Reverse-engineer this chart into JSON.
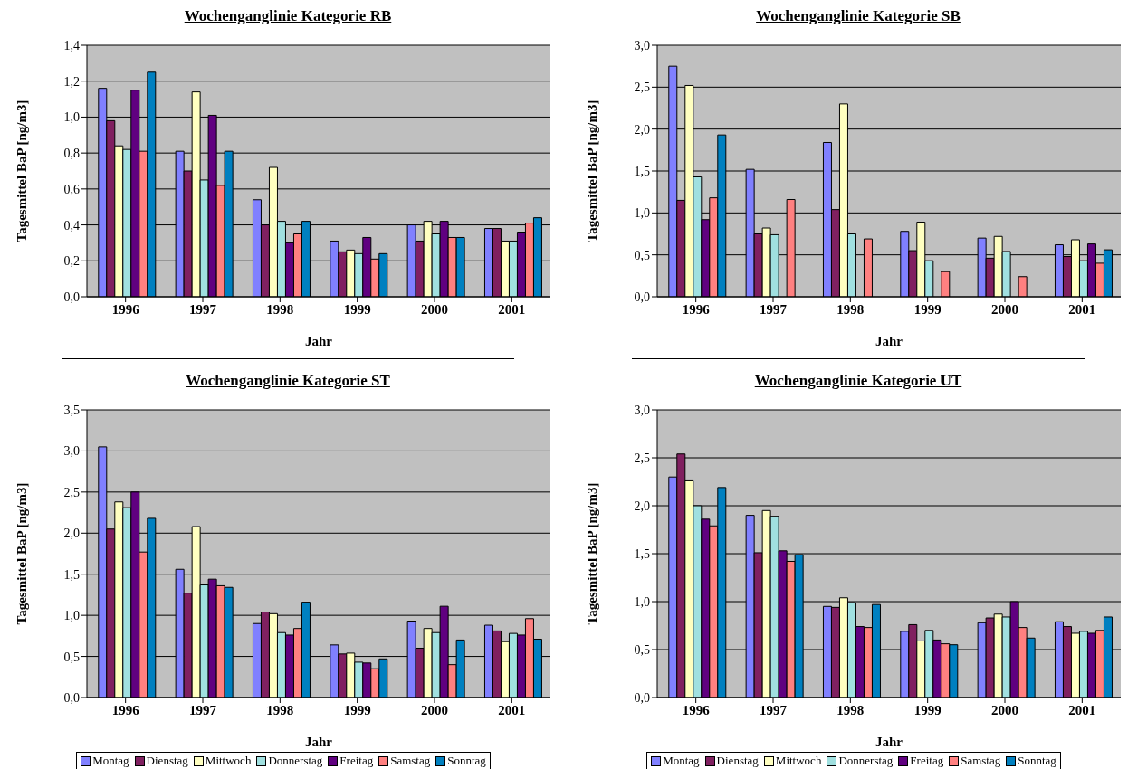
{
  "chart_data": [
    {
      "type": "bar",
      "title": "Wochenganglinie Kategorie RB",
      "xlabel": "Jahr",
      "ylabel": "Tagesmittel  BaP [ng/m3]",
      "categories": [
        "1996",
        "1997",
        "1998",
        "1999",
        "2000",
        "2001"
      ],
      "ylim": [
        0,
        1.4
      ],
      "yticks": [
        {
          "value": 0,
          "label": "0,0"
        },
        {
          "value": 0.2,
          "label": "0,2"
        },
        {
          "value": 0.4,
          "label": "0,4"
        },
        {
          "value": 0.6,
          "label": "0,6"
        },
        {
          "value": 0.8,
          "label": "0,8"
        },
        {
          "value": 1.0,
          "label": "1,0"
        },
        {
          "value": 1.2,
          "label": "1,2"
        },
        {
          "value": 1.4,
          "label": "1,4"
        }
      ],
      "grid": "y",
      "legend": false,
      "series": [
        {
          "color": "#8080ff",
          "values": [
            1.16,
            0.81,
            0.54,
            0.31,
            0.4,
            0.38
          ]
        },
        {
          "color": "#802060",
          "values": [
            0.98,
            0.7,
            0.4,
            0.25,
            0.31,
            0.38
          ]
        },
        {
          "color": "#ffffc0",
          "values": [
            0.84,
            1.14,
            0.72,
            0.26,
            0.42,
            0.31
          ]
        },
        {
          "color": "#a0e0e0",
          "values": [
            0.82,
            0.65,
            0.42,
            0.24,
            0.35,
            0.31
          ]
        },
        {
          "color": "#600080",
          "values": [
            1.15,
            1.01,
            0.3,
            0.33,
            0.42,
            0.36
          ]
        },
        {
          "color": "#ff8080",
          "values": [
            0.81,
            0.62,
            0.35,
            0.21,
            0.33,
            0.41
          ]
        },
        {
          "color": "#0080c0",
          "values": [
            1.25,
            0.81,
            0.42,
            0.24,
            0.33,
            0.44
          ]
        }
      ]
    },
    {
      "type": "bar",
      "title": "Wochenganglinie Kategorie SB",
      "xlabel": "Jahr",
      "ylabel": "Tagesmittel  BaP [ng/m3]",
      "categories": [
        "1996",
        "1997",
        "1998",
        "1999",
        "2000",
        "2001"
      ],
      "ylim": [
        0,
        3
      ],
      "yticks": [
        {
          "value": 0,
          "label": "0,0"
        },
        {
          "value": 0.5,
          "label": "0,5"
        },
        {
          "value": 1.0,
          "label": "1,0"
        },
        {
          "value": 1.5,
          "label": "1,5"
        },
        {
          "value": 2.0,
          "label": "2,0"
        },
        {
          "value": 2.5,
          "label": "2,5"
        },
        {
          "value": 3.0,
          "label": "3,0"
        }
      ],
      "grid": "y",
      "legend": false,
      "series": [
        {
          "color": "#8080ff",
          "values": [
            2.75,
            1.52,
            1.84,
            0.78,
            0.7,
            0.62
          ]
        },
        {
          "color": "#802060",
          "values": [
            1.15,
            0.75,
            1.04,
            0.55,
            0.46,
            0.48
          ]
        },
        {
          "color": "#ffffc0",
          "values": [
            2.52,
            0.82,
            2.3,
            0.89,
            0.72,
            0.68
          ]
        },
        {
          "color": "#a0e0e0",
          "values": [
            1.43,
            0.74,
            0.75,
            0.43,
            0.54,
            0.43
          ]
        },
        {
          "color": "#600080",
          "values": [
            0.92,
            null,
            null,
            null,
            null,
            0.63
          ]
        },
        {
          "color": "#ff8080",
          "values": [
            1.18,
            1.16,
            0.69,
            0.3,
            0.24,
            0.4
          ]
        },
        {
          "color": "#0080c0",
          "values": [
            1.93,
            null,
            null,
            null,
            null,
            0.56
          ]
        }
      ]
    },
    {
      "type": "bar",
      "title": "Wochenganglinie Kategorie ST",
      "xlabel": "Jahr",
      "ylabel": "Tagesmittel  BaP [ng/m3]",
      "categories": [
        "1996",
        "1997",
        "1998",
        "1999",
        "2000",
        "2001"
      ],
      "ylim": [
        0,
        3.5
      ],
      "yticks": [
        {
          "value": 0,
          "label": "0,0"
        },
        {
          "value": 0.5,
          "label": "0,5"
        },
        {
          "value": 1.0,
          "label": "1,0"
        },
        {
          "value": 1.5,
          "label": "1,5"
        },
        {
          "value": 2.0,
          "label": "2,0"
        },
        {
          "value": 2.5,
          "label": "2,5"
        },
        {
          "value": 3.0,
          "label": "3,0"
        },
        {
          "value": 3.5,
          "label": "3,5"
        }
      ],
      "grid": "y",
      "legend": "bottom",
      "series": [
        {
          "name": "Montag",
          "color": "#8080ff",
          "values": [
            3.05,
            1.56,
            0.9,
            0.64,
            0.93,
            0.88
          ]
        },
        {
          "name": "Dienstag",
          "color": "#802060",
          "values": [
            2.05,
            1.27,
            1.04,
            0.53,
            0.6,
            0.81
          ]
        },
        {
          "name": "Mittwoch",
          "color": "#ffffc0",
          "values": [
            2.38,
            2.08,
            1.02,
            0.54,
            0.84,
            0.68
          ]
        },
        {
          "name": "Donnerstag",
          "color": "#a0e0e0",
          "values": [
            2.31,
            1.37,
            0.79,
            0.43,
            0.79,
            0.78
          ]
        },
        {
          "name": "Freitag",
          "color": "#600080",
          "values": [
            2.5,
            1.44,
            0.76,
            0.42,
            1.11,
            0.76
          ]
        },
        {
          "name": "Samstag",
          "color": "#ff8080",
          "values": [
            1.77,
            1.36,
            0.84,
            0.35,
            0.4,
            0.96
          ]
        },
        {
          "name": "Sonntag",
          "color": "#0080c0",
          "values": [
            2.18,
            1.34,
            1.16,
            0.47,
            0.7,
            0.71
          ]
        }
      ]
    },
    {
      "type": "bar",
      "title": "Wochenganglinie Kategorie UT",
      "xlabel": "Jahr",
      "ylabel": "Tagesmittel  BaP [ng/m3]",
      "categories": [
        "1996",
        "1997",
        "1998",
        "1999",
        "2000",
        "2001"
      ],
      "ylim": [
        0,
        3
      ],
      "yticks": [
        {
          "value": 0,
          "label": "0,0"
        },
        {
          "value": 0.5,
          "label": "0,5"
        },
        {
          "value": 1.0,
          "label": "1,0"
        },
        {
          "value": 1.5,
          "label": "1,5"
        },
        {
          "value": 2.0,
          "label": "2,0"
        },
        {
          "value": 2.5,
          "label": "2,5"
        },
        {
          "value": 3.0,
          "label": "3,0"
        }
      ],
      "grid": "y",
      "legend": "bottom",
      "series": [
        {
          "name": "Montag",
          "color": "#8080ff",
          "values": [
            2.3,
            1.9,
            0.95,
            0.69,
            0.78,
            0.79
          ]
        },
        {
          "name": "Dienstag",
          "color": "#802060",
          "values": [
            2.54,
            1.51,
            0.94,
            0.76,
            0.83,
            0.74
          ]
        },
        {
          "name": "Mittwoch",
          "color": "#ffffc0",
          "values": [
            2.26,
            1.95,
            1.04,
            0.59,
            0.87,
            0.67
          ]
        },
        {
          "name": "Donnerstag",
          "color": "#a0e0e0",
          "values": [
            2.0,
            1.89,
            0.99,
            0.7,
            0.84,
            0.69
          ]
        },
        {
          "name": "Freitag",
          "color": "#600080",
          "values": [
            1.86,
            1.53,
            0.74,
            0.6,
            1.0,
            0.67
          ]
        },
        {
          "name": "Samstag",
          "color": "#ff8080",
          "values": [
            1.79,
            1.42,
            0.73,
            0.56,
            0.73,
            0.7
          ]
        },
        {
          "name": "Sonntag",
          "color": "#0080c0",
          "values": [
            2.19,
            1.49,
            0.97,
            0.55,
            0.62,
            0.84
          ]
        }
      ]
    }
  ]
}
